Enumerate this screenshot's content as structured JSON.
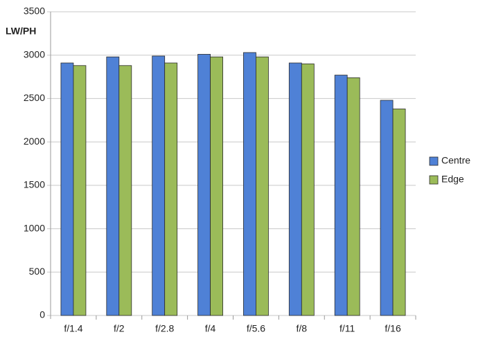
{
  "chart_data": {
    "type": "bar",
    "y_label": "LW/PH",
    "categories": [
      "f/1.4",
      "f/2",
      "f/2.8",
      "f/4",
      "f/5.6",
      "f/8",
      "f/11",
      "f/16"
    ],
    "series": [
      {
        "name": "Centre",
        "color": "#4f81d6",
        "values": [
          2910,
          2980,
          2990,
          3010,
          3030,
          2910,
          2770,
          2480
        ]
      },
      {
        "name": "Edge",
        "color": "#9bbb59",
        "values": [
          2880,
          2880,
          2910,
          2980,
          2980,
          2900,
          2740,
          2380
        ]
      }
    ],
    "ylim": [
      0,
      3500
    ],
    "yticks": [
      0,
      500,
      1000,
      1500,
      2000,
      2500,
      3000,
      3500
    ],
    "grid": true,
    "legend": "right"
  }
}
